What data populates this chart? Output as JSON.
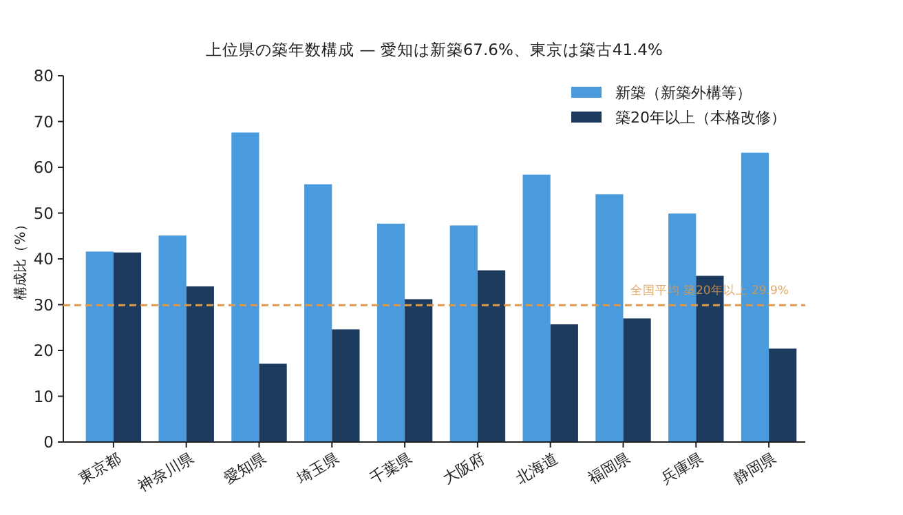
{
  "chart_data": {
    "type": "bar",
    "title": "上位県の築年数構成 — 愛知は新築67.6%、東京は築古41.4%",
    "ylabel": "構成比（%）",
    "categories": [
      "東京都",
      "神奈川県",
      "愛知県",
      "埼玉県",
      "千葉県",
      "大阪府",
      "北海道",
      "福岡県",
      "兵庫県",
      "静岡県"
    ],
    "series": [
      {
        "name": "新築（新築外構等）",
        "color": "#4a9ade",
        "values": [
          41.6,
          45.1,
          67.6,
          56.3,
          47.7,
          47.3,
          58.4,
          54.1,
          49.9,
          63.2
        ]
      },
      {
        "name": "築20年以上（本格改修）",
        "color": "#1d3a5f",
        "values": [
          41.4,
          34.0,
          17.1,
          24.6,
          31.2,
          37.5,
          25.7,
          27.0,
          36.3,
          20.4
        ]
      }
    ],
    "ylim": [
      0,
      80
    ],
    "yticks": [
      0,
      10,
      20,
      30,
      40,
      50,
      60,
      70,
      80
    ],
    "ref_lines": [
      {
        "axis": "y",
        "value": 29.9,
        "label": "全国平均 築20年以上 29.9%",
        "color": "#dd9a4a",
        "line_style": "dashed"
      }
    ],
    "legend": "top right",
    "grid": false
  }
}
